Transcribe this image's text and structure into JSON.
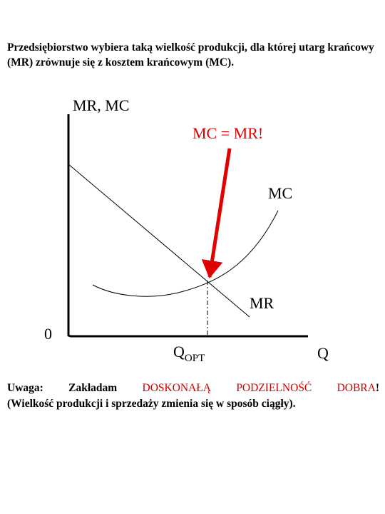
{
  "intro_text": "Przedsiębiorstwo wybiera taką wielkość produkcji, dla której utarg krańcowy (MR) zrównuje się z kosztem krańcowym (MC).",
  "diagram": {
    "y_axis_label": "MR, MC",
    "x_axis_label": "Q",
    "origin_label": "0",
    "callout_text": "MC = MR!",
    "mc_curve_label": "MC",
    "mr_curve_label": "MR",
    "q_opt_main": "Q",
    "q_opt_sub": "OPT",
    "callout_color": "#e00000"
  },
  "note": {
    "w1": "Uwaga:",
    "w2": "Zakładam",
    "w3": "DOSKONAŁĄ",
    "w4": "PODZIELNOŚĆ",
    "w5": "DOBRA",
    "w5_suffix": "!",
    "line2": "(Wielkość produkcji i sprzedaży zmienia się w sposób ciągły)."
  }
}
